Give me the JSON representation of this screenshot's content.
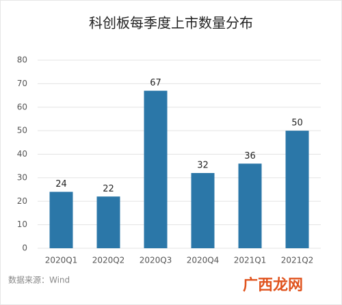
{
  "chart_data": {
    "type": "bar",
    "title": "科创板每季度上市数量分布",
    "categories": [
      "2020Q1",
      "2020Q2",
      "2020Q3",
      "2020Q4",
      "2021Q1",
      "2021Q2"
    ],
    "values": [
      24,
      22,
      67,
      32,
      36,
      50
    ],
    "color": "#2b77a8",
    "ylim": [
      0,
      80
    ],
    "yticks": [
      0,
      10,
      20,
      30,
      40,
      50,
      60,
      70,
      80
    ],
    "grid": true,
    "source": "数据来源：Wind",
    "watermark": "广西龙网"
  }
}
